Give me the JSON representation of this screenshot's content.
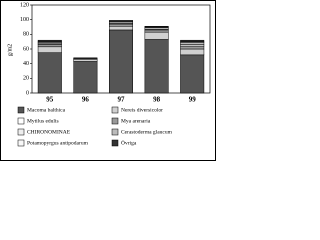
{
  "chart_data": {
    "type": "stacked-bar",
    "y_label": "g/m2",
    "categories": [
      "95",
      "96",
      "97",
      "98",
      "99"
    ],
    "series": [
      {
        "name": "Macoma balthica",
        "color": "#555555",
        "values": [
          55,
          43,
          86,
          73,
          52
        ]
      },
      {
        "name": "Nereis diversicolor",
        "color": "#d0d0d0",
        "values": [
          8,
          3,
          5,
          10,
          8
        ]
      },
      {
        "name": "Mytilus edulis",
        "color": "#ffffff",
        "values": [
          0,
          0,
          0,
          0,
          0
        ]
      },
      {
        "name": "Mya arenaria",
        "color": "#999999",
        "values": [
          3,
          1,
          3,
          3,
          4
        ]
      },
      {
        "name": "CHIRONOMINAE",
        "color": "#eeeeee",
        "values": [
          1,
          0,
          1,
          1,
          2
        ]
      },
      {
        "name": "Cerastoderma glaucum",
        "color": "#bbbbbb",
        "values": [
          2,
          0,
          2,
          2,
          3
        ]
      },
      {
        "name": "Potamopyrgus antipodarum",
        "color": "#f8f8f8",
        "values": [
          1,
          0,
          1,
          1,
          1
        ]
      },
      {
        "name": "Övriga",
        "color": "#333333",
        "values": [
          2,
          1,
          1,
          1,
          2
        ]
      }
    ],
    "ylim": [
      0,
      120
    ],
    "yticks": [
      0,
      20,
      40,
      60,
      80,
      100,
      120
    ]
  }
}
